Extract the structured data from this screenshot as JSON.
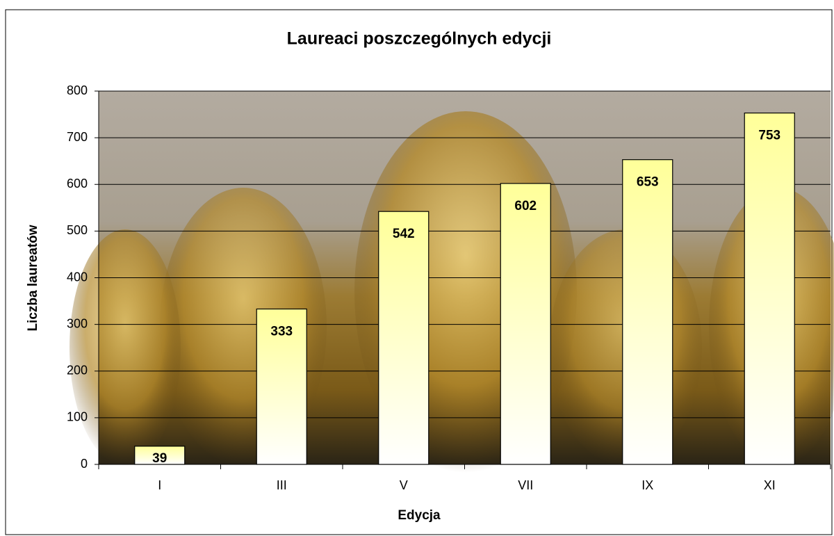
{
  "chart_data": {
    "type": "bar",
    "title": "Laureaci poszczególnych edycji",
    "x_label": "Edycja",
    "y_label": "Liczba laureatów",
    "categories": [
      "I",
      "III",
      "V",
      "VII",
      "IX",
      "XI"
    ],
    "values": [
      39,
      333,
      542,
      602,
      653,
      753
    ],
    "color": "#ffff99",
    "ylim": [
      0,
      800
    ],
    "yticks": [
      0,
      100,
      200,
      300,
      400,
      500,
      600,
      700,
      800
    ],
    "grid": true
  }
}
